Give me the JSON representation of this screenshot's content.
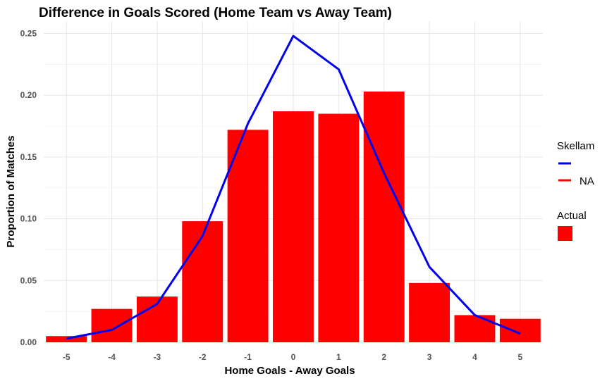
{
  "chart_data": {
    "type": "bar",
    "title": "Difference in Goals Scored (Home Team vs Away Team)",
    "xlabel": "Home Goals - Away Goals",
    "ylabel": "Proportion of Matches",
    "categories": [
      "-5",
      "-4",
      "-3",
      "-2",
      "-1",
      "0",
      "1",
      "2",
      "3",
      "4",
      "5"
    ],
    "x_values": [
      -5,
      -4,
      -3,
      -2,
      -1,
      0,
      1,
      2,
      3,
      4,
      5
    ],
    "xlim": [
      -5.5,
      5.5
    ],
    "ylim": [
      0,
      0.26
    ],
    "y_ticks": [
      0,
      0.05,
      0.1,
      0.15,
      0.2,
      0.25
    ],
    "y_tick_labels": [
      "0.00",
      "0.05",
      "0.10",
      "0.15",
      "0.20",
      "0.25"
    ],
    "grid": true,
    "series": [
      {
        "name": "Actual",
        "kind": "bar",
        "color": "#ff0000",
        "values": [
          0.005,
          0.027,
          0.037,
          0.098,
          0.172,
          0.187,
          0.185,
          0.203,
          0.048,
          0.022,
          0.019
        ]
      },
      {
        "name": "Skellam",
        "kind": "line",
        "color": "#0000ee",
        "values": [
          0.003,
          0.01,
          0.031,
          0.086,
          0.177,
          0.248,
          0.221,
          0.137,
          0.061,
          0.022,
          0.007
        ]
      }
    ],
    "legend": {
      "position": "right",
      "groups": [
        {
          "title": "Skellam",
          "entries": [
            {
              "label": "",
              "color": "#0000ee",
              "shape": "line"
            },
            {
              "label": "NA",
              "color": "#ff0000",
              "shape": "line"
            }
          ]
        },
        {
          "title": "Actual",
          "entries": [
            {
              "label": "",
              "color": "#ff0000",
              "shape": "box"
            }
          ]
        }
      ]
    }
  }
}
